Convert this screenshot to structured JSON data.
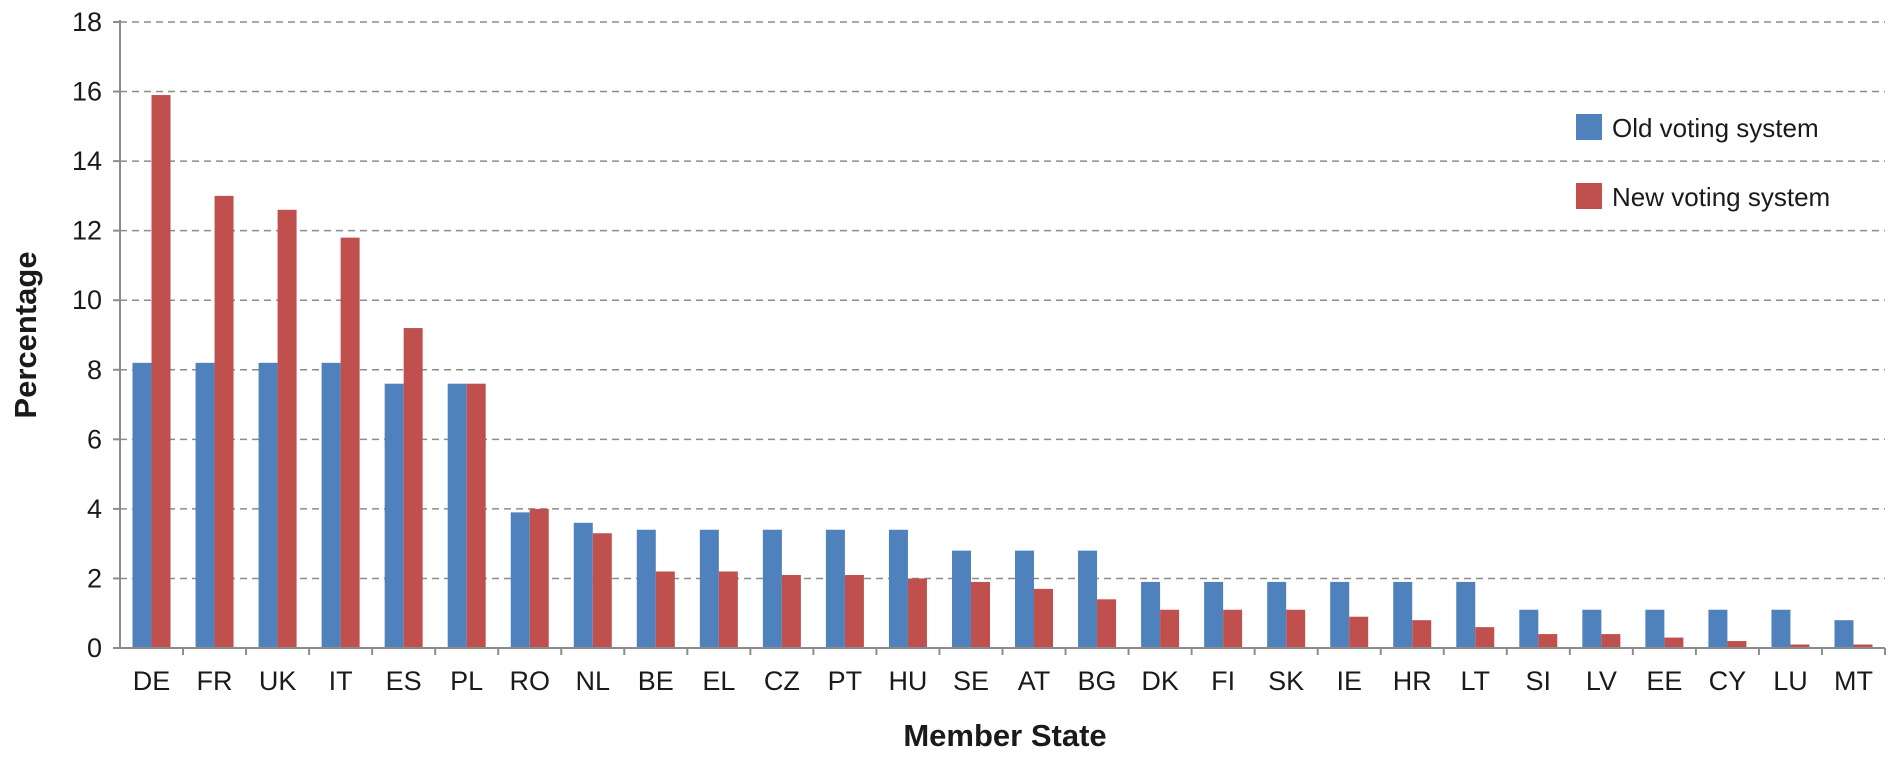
{
  "chart_data": {
    "type": "bar",
    "title": "",
    "xlabel": "Member State",
    "ylabel": "Percentage",
    "ylim": [
      0,
      18
    ],
    "yticks": [
      0,
      2,
      4,
      6,
      8,
      10,
      12,
      14,
      16,
      18
    ],
    "grid": true,
    "legend_position": "top-right",
    "categories": [
      "DE",
      "FR",
      "UK",
      "IT",
      "ES",
      "PL",
      "RO",
      "NL",
      "BE",
      "EL",
      "CZ",
      "PT",
      "HU",
      "SE",
      "AT",
      "BG",
      "DK",
      "FI",
      "SK",
      "IE",
      "HR",
      "LT",
      "SI",
      "LV",
      "EE",
      "CY",
      "LU",
      "MT"
    ],
    "series": [
      {
        "name": "Old voting system",
        "color": "#4f81bd",
        "values": [
          8.2,
          8.2,
          8.2,
          8.2,
          7.6,
          7.6,
          3.9,
          3.6,
          3.4,
          3.4,
          3.4,
          3.4,
          3.4,
          2.8,
          2.8,
          2.8,
          1.9,
          1.9,
          1.9,
          1.9,
          1.9,
          1.9,
          1.1,
          1.1,
          1.1,
          1.1,
          1.1,
          0.8
        ]
      },
      {
        "name": "New voting system",
        "color": "#c0504d",
        "values": [
          15.9,
          13.0,
          12.6,
          11.8,
          9.2,
          7.6,
          4.0,
          3.3,
          2.2,
          2.2,
          2.1,
          2.1,
          2.0,
          1.9,
          1.7,
          1.4,
          1.1,
          1.1,
          1.1,
          0.9,
          0.8,
          0.6,
          0.4,
          0.4,
          0.3,
          0.2,
          0.1,
          0.1
        ]
      }
    ]
  }
}
